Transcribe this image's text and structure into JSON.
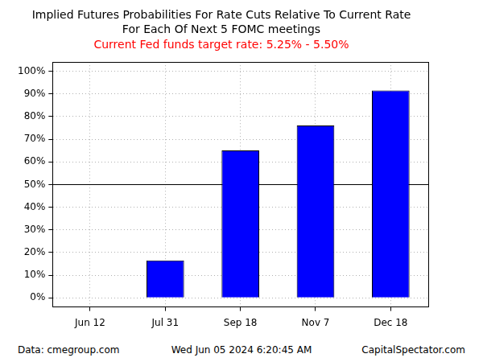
{
  "chart_data": {
    "type": "bar",
    "title": [
      "Implied Futures Probabilities For Rate Cuts Relative To Current Rate",
      "For Each Of Next 5 FOMC meetings"
    ],
    "subtitle": "Current Fed funds target rate: 5.25% - 5.50%",
    "categories": [
      "Jun 12",
      "Jul 31",
      "Sep 18",
      "Nov 7",
      "Dec 18"
    ],
    "values": [
      0,
      16.5,
      65,
      76,
      91.5
    ],
    "color": "#0000ff",
    "ylim": [
      -4,
      104
    ],
    "yticks": [
      {
        "value": 0,
        "label": "0%"
      },
      {
        "value": 10,
        "label": "10%"
      },
      {
        "value": 20,
        "label": "20%"
      },
      {
        "value": 30,
        "label": "30%"
      },
      {
        "value": 40,
        "label": "40%"
      },
      {
        "value": 50,
        "label": "50%"
      },
      {
        "value": 60,
        "label": "60%"
      },
      {
        "value": 70,
        "label": "70%"
      },
      {
        "value": 80,
        "label": "80%"
      },
      {
        "value": 90,
        "label": "90%"
      },
      {
        "value": 100,
        "label": "100%"
      }
    ],
    "grid": true,
    "reference_line": 50,
    "source": "Data: cmegroup.com",
    "timestamp": "Wed Jun 05 2024 6:20:45 AM",
    "credit": "CapitalSpectator.com"
  }
}
